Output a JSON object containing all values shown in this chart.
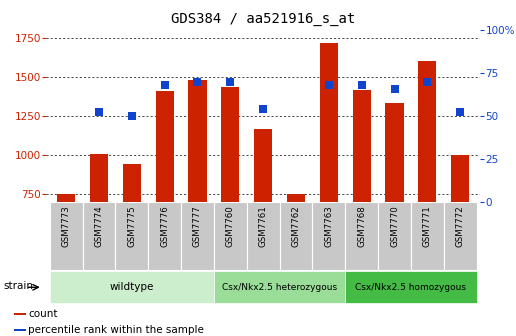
{
  "title": "GDS384 / aa521916_s_at",
  "samples": [
    "GSM7773",
    "GSM7774",
    "GSM7775",
    "GSM7776",
    "GSM7777",
    "GSM7760",
    "GSM7761",
    "GSM7762",
    "GSM7763",
    "GSM7768",
    "GSM7770",
    "GSM7771",
    "GSM7772"
  ],
  "counts": [
    750,
    1005,
    940,
    1410,
    1480,
    1435,
    1165,
    750,
    1720,
    1415,
    1335,
    1605,
    1000
  ],
  "percentiles": [
    null,
    52,
    50,
    68,
    70,
    70,
    54,
    null,
    68,
    68,
    66,
    70,
    52
  ],
  "ylim_left": [
    700,
    1800
  ],
  "ylim_right": [
    0,
    100
  ],
  "yticks_left": [
    750,
    1000,
    1250,
    1500,
    1750
  ],
  "yticks_right": [
    0,
    25,
    50,
    75,
    100
  ],
  "bar_color": "#CC2200",
  "dot_color": "#1144CC",
  "bar_width": 0.55,
  "groups": [
    {
      "label": "wildtype",
      "start": 0,
      "end": 4,
      "color": "#CCEECC"
    },
    {
      "label": "Csx/Nkx2.5 heterozygous",
      "start": 5,
      "end": 8,
      "color": "#99DD99"
    },
    {
      "label": "Csx/Nkx2.5 homozygous",
      "start": 9,
      "end": 12,
      "color": "#44BB44"
    }
  ],
  "strain_label": "strain",
  "legend_count_label": "count",
  "legend_percentile_label": "percentile rank within the sample",
  "grid_color": "#000000",
  "bg_color": "#FFFFFF",
  "tick_label_color_left": "#CC2200",
  "tick_label_color_right": "#1144CC",
  "percentile_marker_size": 35,
  "cell_color": "#C8C8C8"
}
